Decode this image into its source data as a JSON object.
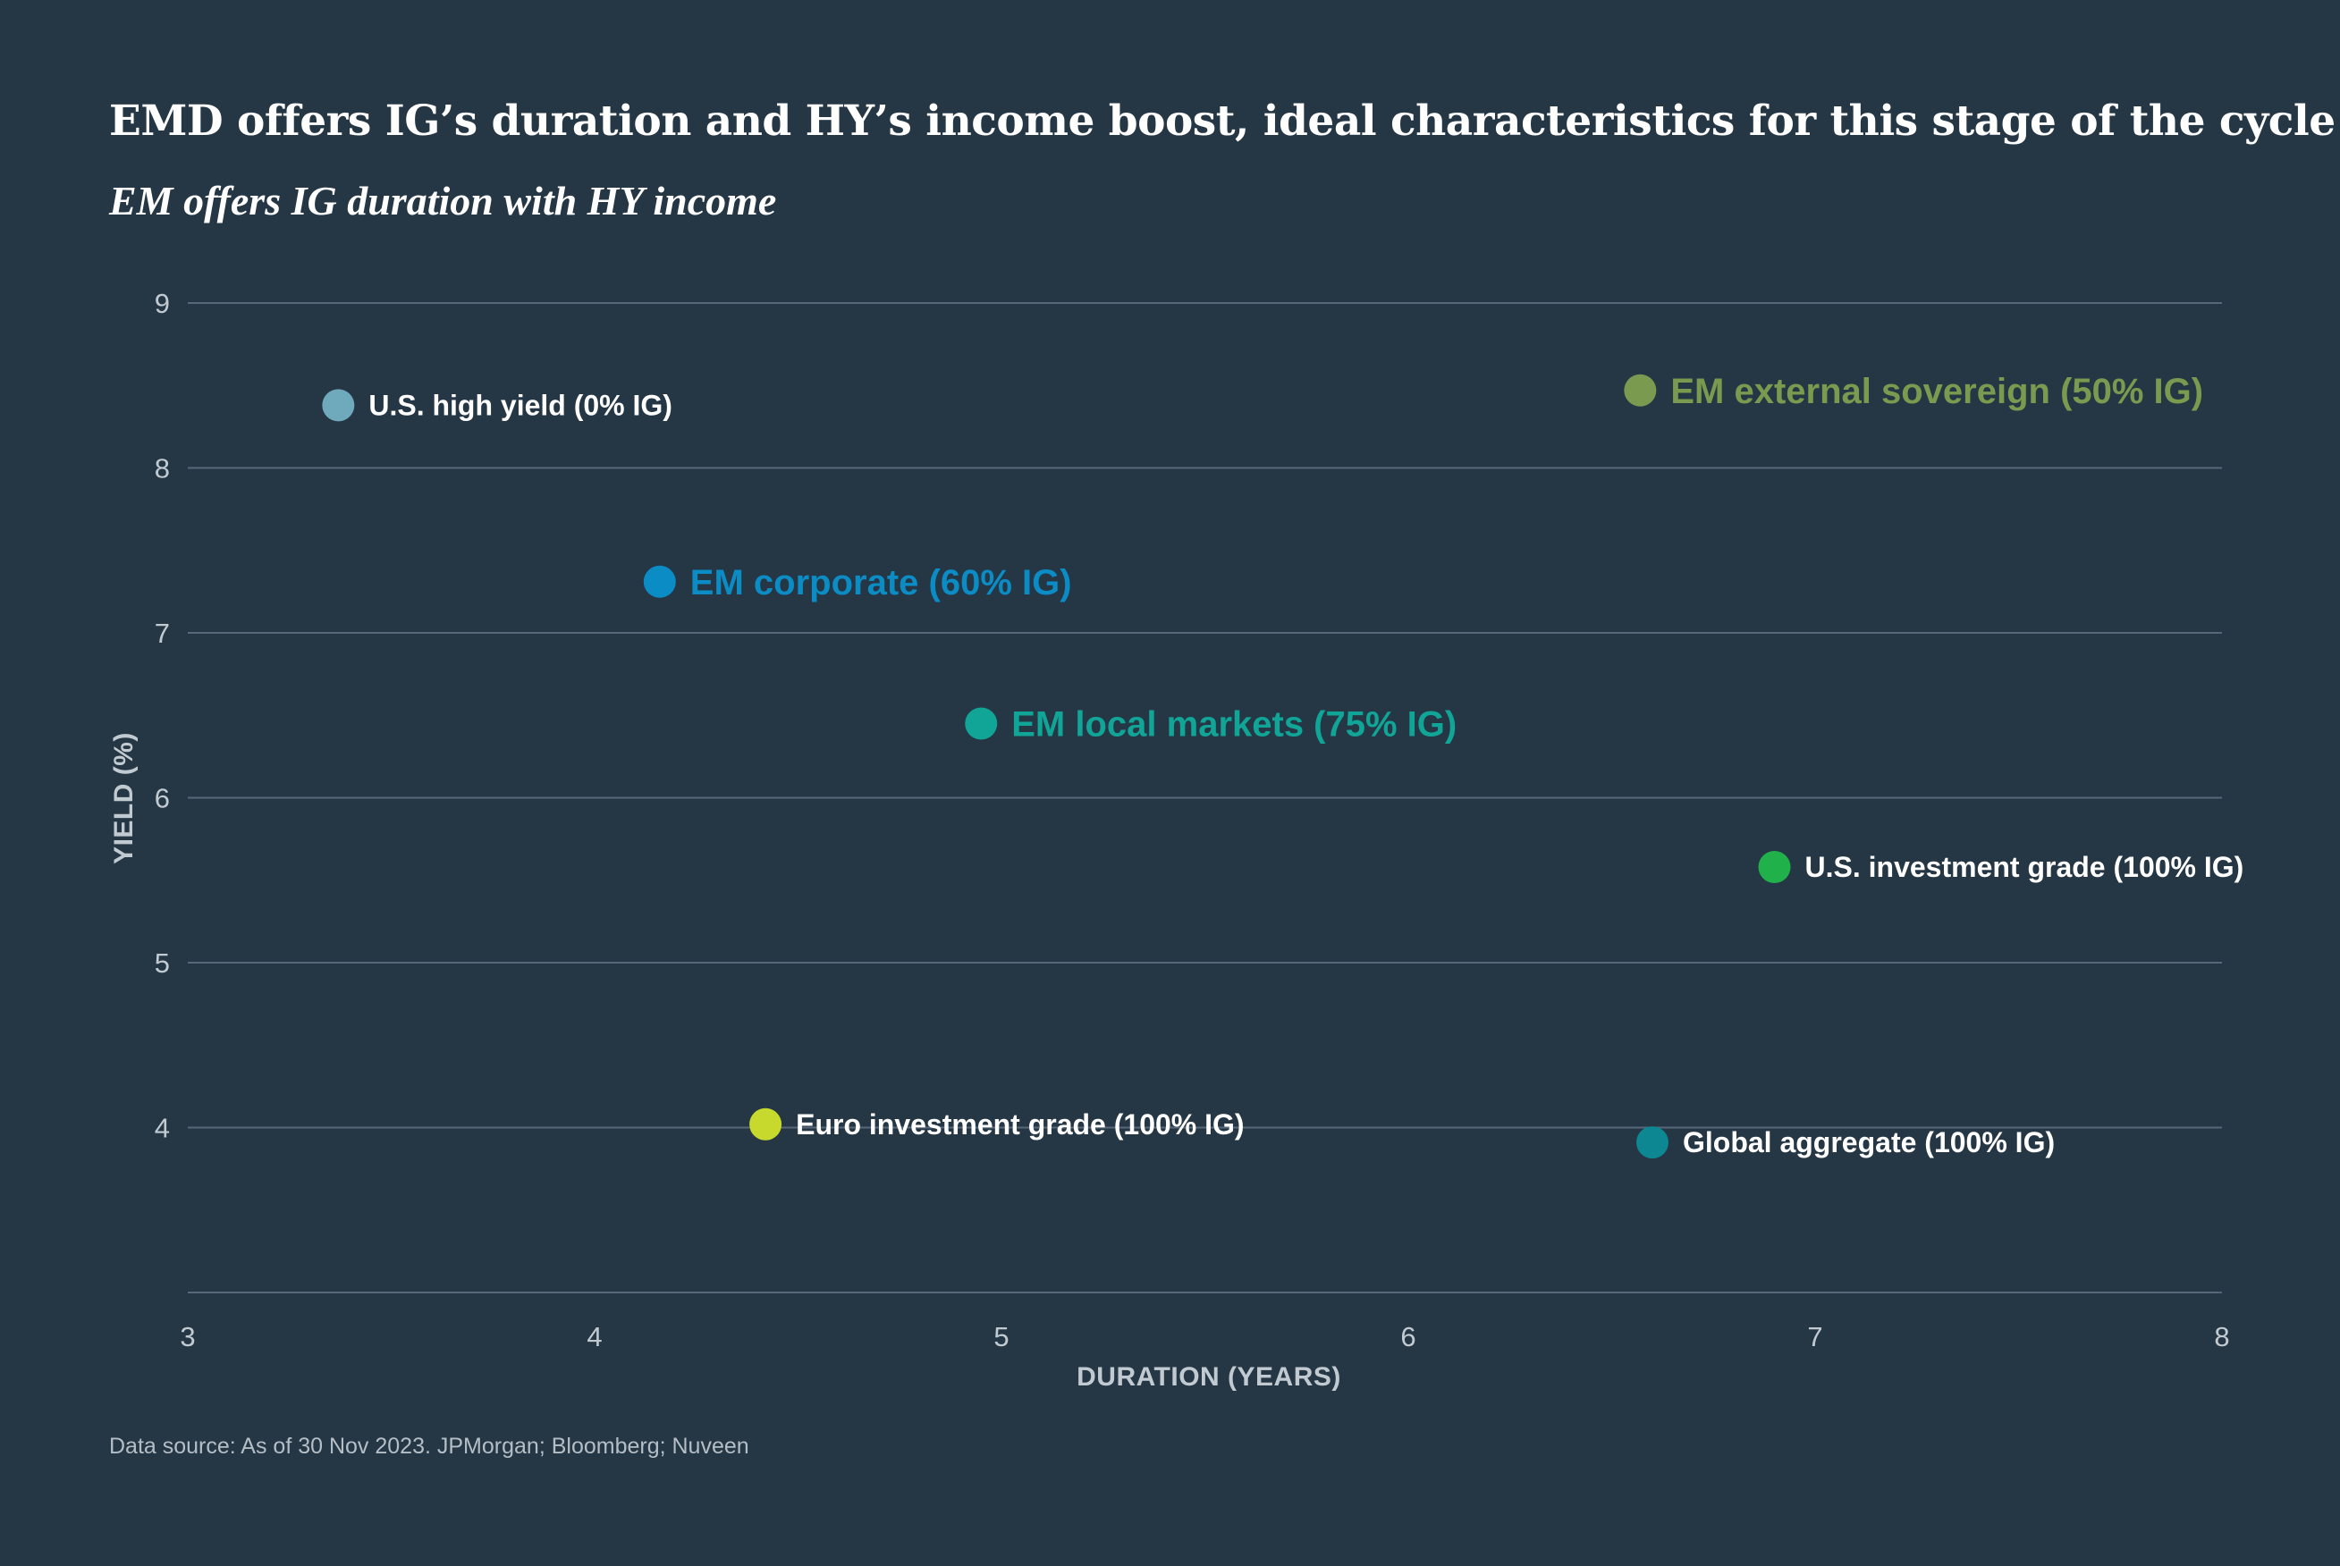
{
  "title": "EMD offers IG’s duration and HY’s income boost, ideal characteristics for this stage of the cycle",
  "subtitle": "EM offers IG duration with HY income",
  "source": "Data source: As of 30 Nov 2023. JPMorgan; Bloomberg; Nuveen",
  "chart_data": {
    "type": "scatter",
    "xlabel": "DURATION (YEARS)",
    "ylabel": "YIELD (%)",
    "xlim": [
      3,
      8
    ],
    "ylim": [
      3,
      9
    ],
    "xticks": [
      "3",
      "4",
      "5",
      "6",
      "7",
      "8"
    ],
    "yticks": [
      "4",
      "5",
      "6",
      "7",
      "8",
      "9"
    ],
    "grid": "horizontal",
    "legend": "none",
    "points": [
      {
        "label": "U.S. high yield (0% IG)",
        "x": 3.37,
        "y": 8.38,
        "color": "#6fa9bc",
        "label_color": "#ffffff",
        "emphasis": false
      },
      {
        "label": "EM external sovereign (50% IG)",
        "x": 6.57,
        "y": 8.47,
        "color": "#7a9a4f",
        "label_color": "#7a9a4f",
        "emphasis": true
      },
      {
        "label": "EM corporate (60% IG)",
        "x": 4.16,
        "y": 7.31,
        "color": "#0b8cc5",
        "label_color": "#0b8cc5",
        "emphasis": true
      },
      {
        "label": "EM local markets (75% IG)",
        "x": 4.95,
        "y": 6.45,
        "color": "#10a596",
        "label_color": "#10a596",
        "emphasis": true
      },
      {
        "label": "U.S. investment grade (100% IG)",
        "x": 6.9,
        "y": 5.58,
        "color": "#21b14b",
        "label_color": "#ffffff",
        "emphasis": false
      },
      {
        "label": "Euro investment grade (100% IG)",
        "x": 4.42,
        "y": 4.02,
        "color": "#c6d92c",
        "label_color": "#ffffff",
        "emphasis": false
      },
      {
        "label": "Global aggregate (100% IG)",
        "x": 6.6,
        "y": 3.91,
        "color": "#0d8791",
        "label_color": "#ffffff",
        "emphasis": false
      }
    ],
    "colors": {
      "background": "#253645",
      "grid": "#56687a",
      "tick_text": "#c2cad1",
      "axis_label_text": "#c2cad1"
    }
  }
}
